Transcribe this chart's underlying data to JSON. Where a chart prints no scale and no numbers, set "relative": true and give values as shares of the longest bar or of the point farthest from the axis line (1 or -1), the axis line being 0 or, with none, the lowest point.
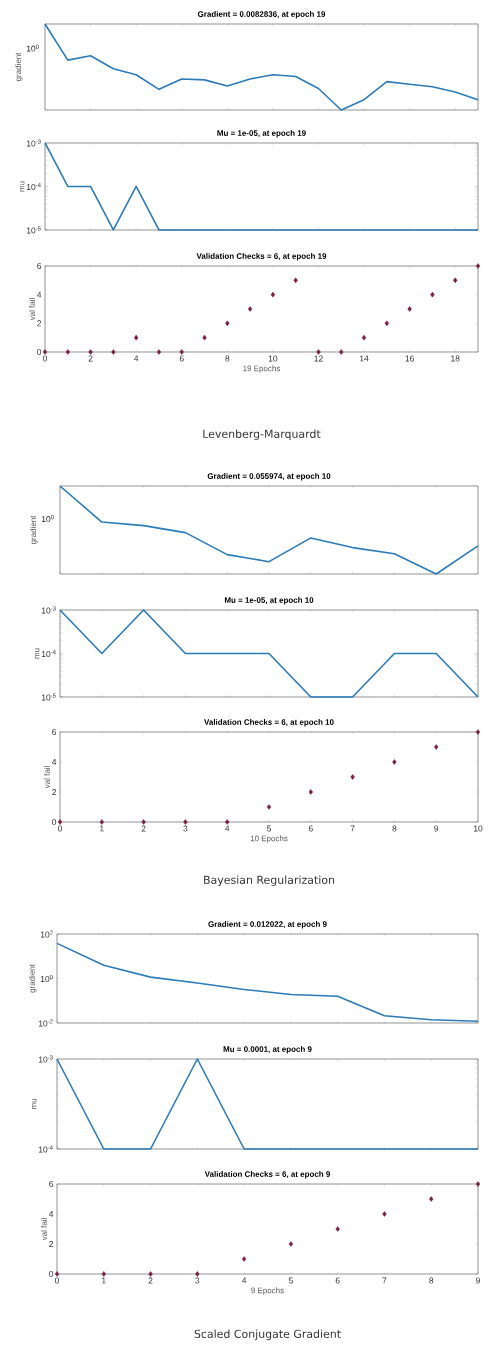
{
  "chart_data": [
    {
      "type": "line",
      "title": "Gradient = 0.0082836, at epoch 19",
      "ylabel": "gradient",
      "relative": true,
      "tick_labels": false,
      "x": [
        0,
        1,
        2,
        3,
        4,
        5,
        6,
        7,
        8,
        9,
        10,
        11,
        12,
        13,
        14,
        15,
        16,
        17,
        18,
        19
      ],
      "xlim": [
        0,
        19
      ],
      "xticks": [
        {
          "value": 0,
          "label": null
        },
        {
          "value": 2,
          "label": null
        },
        {
          "value": 4,
          "label": null
        },
        {
          "value": 6,
          "label": null
        },
        {
          "value": 8,
          "label": null
        },
        {
          "value": 10,
          "label": null
        },
        {
          "value": 12,
          "label": null
        },
        {
          "value": 14,
          "label": null
        },
        {
          "value": 16,
          "label": null
        },
        {
          "value": 18,
          "label": null
        }
      ],
      "series": [
        {
          "color": "#2b7bb9",
          "values": [
            1,
            0.58,
            0.63,
            0.48,
            0.41,
            0.24,
            0.36,
            0.35,
            0.28,
            0.36,
            0.41,
            0.39,
            0.25,
            0,
            0.12,
            0.33,
            0.3,
            0.27,
            0.21,
            0.12
          ]
        }
      ],
      "annotations": [
        "10$^{0}$"
      ]
    },
    {
      "type": "line",
      "title": "Mu = 1e-05, at epoch 19",
      "ylabel": "mu",
      "log": "y",
      "tick_labels": "y",
      "x": [
        0,
        1,
        2,
        3,
        4,
        5,
        6,
        7,
        8,
        9,
        10,
        11,
        12,
        13,
        14,
        15,
        16,
        17,
        18,
        19
      ],
      "xlim": [
        0,
        19
      ],
      "xticks": [
        {
          "value": 0,
          "label": null
        },
        {
          "value": 2,
          "label": null
        },
        {
          "value": 4,
          "label": null
        },
        {
          "value": 6,
          "label": null
        },
        {
          "value": 8,
          "label": null
        },
        {
          "value": 10,
          "label": null
        },
        {
          "value": 12,
          "label": null
        },
        {
          "value": 14,
          "label": null
        },
        {
          "value": 16,
          "label": null
        },
        {
          "value": 18,
          "label": null
        }
      ],
      "ylim": [
        1e-05,
        0.001
      ],
      "yticks": [
        {
          "value": 1e-05,
          "label": "10$^{-5}$"
        },
        {
          "value": 0.0001,
          "label": "10$^{-4}$"
        },
        {
          "value": 0.001,
          "label": "10$^{-3}$"
        }
      ],
      "series": [
        {
          "color": "#2b7bb9",
          "values": [
            0.001,
            0.0001,
            0.0001,
            1e-05,
            0.0001,
            1e-05,
            1e-05,
            1e-05,
            1e-05,
            1e-05,
            1e-05,
            1e-05,
            1e-05,
            1e-05,
            1e-05,
            1e-05,
            1e-05,
            1e-05,
            1e-05,
            1e-05
          ]
        }
      ]
    },
    {
      "type": "scatter",
      "title": "Validation Checks = 6, at epoch 19",
      "xlabel": "19 Epochs",
      "ylabel": "val fail",
      "marker": "diamond",
      "x": [
        0,
        1,
        2,
        3,
        4,
        5,
        6,
        7,
        8,
        9,
        10,
        11,
        12,
        13,
        14,
        15,
        16,
        17,
        18,
        19
      ],
      "xlim": [
        0,
        19
      ],
      "xticks": [
        0,
        2,
        4,
        6,
        8,
        10,
        12,
        14,
        16,
        18
      ],
      "ylim": [
        0,
        6
      ],
      "yticks": [
        0,
        2,
        4,
        6
      ],
      "series": [
        {
          "color": "#7a1f3d",
          "values": [
            0,
            0,
            0,
            0,
            1,
            0,
            0,
            1,
            2,
            3,
            4,
            5,
            0,
            0,
            1,
            2,
            3,
            4,
            5,
            6
          ]
        }
      ],
      "annotations": [
        "Levenberg-Marquardt"
      ]
    },
    {
      "type": "line",
      "title": "Gradient = 0.055974, at epoch 10",
      "ylabel": "gradient",
      "relative": true,
      "tick_labels": false,
      "x": [
        0,
        1,
        2,
        3,
        4,
        5,
        6,
        7,
        8,
        9,
        10
      ],
      "xlim": [
        0,
        10
      ],
      "xticks": [
        {
          "value": 0,
          "label": null
        },
        {
          "value": 1,
          "label": null
        },
        {
          "value": 2,
          "label": null
        },
        {
          "value": 3,
          "label": null
        },
        {
          "value": 4,
          "label": null
        },
        {
          "value": 5,
          "label": null
        },
        {
          "value": 6,
          "label": null
        },
        {
          "value": 7,
          "label": null
        },
        {
          "value": 8,
          "label": null
        },
        {
          "value": 9,
          "label": null
        },
        {
          "value": 10,
          "label": null
        }
      ],
      "series": [
        {
          "color": "#2b7bb9",
          "values": [
            1,
            0.59,
            0.55,
            0.47,
            0.22,
            0.14,
            0.41,
            0.3,
            0.23,
            0,
            0.32
          ]
        }
      ],
      "annotations": [
        "10$^{0}$"
      ]
    },
    {
      "type": "line",
      "title": "Mu = 1e-05, at epoch 10",
      "ylabel": "mu",
      "log": "y",
      "tick_labels": "y",
      "x": [
        0,
        1,
        2,
        3,
        4,
        5,
        6,
        7,
        8,
        9,
        10
      ],
      "xlim": [
        0,
        10
      ],
      "xticks": [
        {
          "value": 0,
          "label": null
        },
        {
          "value": 1,
          "label": null
        },
        {
          "value": 2,
          "label": null
        },
        {
          "value": 3,
          "label": null
        },
        {
          "value": 4,
          "label": null
        },
        {
          "value": 5,
          "label": null
        },
        {
          "value": 6,
          "label": null
        },
        {
          "value": 7,
          "label": null
        },
        {
          "value": 8,
          "label": null
        },
        {
          "value": 9,
          "label": null
        },
        {
          "value": 10,
          "label": null
        }
      ],
      "ylim": [
        1e-05,
        0.001
      ],
      "yticks": [
        {
          "value": 1e-05,
          "label": "10$^{-5}$"
        },
        {
          "value": 0.0001,
          "label": "10$^{-4}$"
        },
        {
          "value": 0.001,
          "label": "10$^{-3}$"
        }
      ],
      "series": [
        {
          "color": "#2b7bb9",
          "values": [
            0.001,
            0.0001,
            0.001,
            0.0001,
            0.0001,
            0.0001,
            1e-05,
            1e-05,
            0.0001,
            0.0001,
            1e-05
          ]
        }
      ]
    },
    {
      "type": "scatter",
      "title": "Validation Checks = 6, at epoch 10",
      "xlabel": "10 Epochs",
      "ylabel": "val fail",
      "marker": "diamond",
      "x": [
        0,
        1,
        2,
        3,
        4,
        5,
        6,
        7,
        8,
        9,
        10
      ],
      "xlim": [
        0,
        10
      ],
      "xticks": [
        0,
        1,
        2,
        3,
        4,
        5,
        6,
        7,
        8,
        9,
        10
      ],
      "ylim": [
        0,
        6
      ],
      "yticks": [
        0,
        2,
        4,
        6
      ],
      "series": [
        {
          "color": "#7a1f3d",
          "values": [
            0,
            0,
            0,
            0,
            0,
            1,
            2,
            3,
            4,
            5,
            6
          ]
        }
      ],
      "annotations": [
        "Bayesian Regularization"
      ]
    },
    {
      "type": "line",
      "title": "Gradient = 0.012022, at epoch 9",
      "ylabel": "gradient",
      "log": "y",
      "tick_labels": "y",
      "x": [
        0,
        1,
        2,
        3,
        4,
        5,
        6,
        7,
        8,
        9
      ],
      "xlim": [
        0,
        9
      ],
      "xticks": [
        {
          "value": 0,
          "label": null
        },
        {
          "value": 1,
          "label": null
        },
        {
          "value": 2,
          "label": null
        },
        {
          "value": 3,
          "label": null
        },
        {
          "value": 4,
          "label": null
        },
        {
          "value": 5,
          "label": null
        },
        {
          "value": 6,
          "label": null
        },
        {
          "value": 7,
          "label": null
        },
        {
          "value": 8,
          "label": null
        },
        {
          "value": 9,
          "label": null
        }
      ],
      "ylim": [
        0.01,
        100
      ],
      "yticks": [
        {
          "value": 0.01,
          "label": "10$^{-2}$"
        },
        {
          "value": 1,
          "label": "10$^{0}$"
        },
        {
          "value": 100,
          "label": "10$^{2}$"
        }
      ],
      "series": [
        {
          "color": "#2b7bb9",
          "values": [
            38,
            3.9,
            1.15,
            0.63,
            0.32,
            0.19,
            0.16,
            0.021,
            0.014,
            0.012
          ]
        }
      ]
    },
    {
      "type": "line",
      "title": "Mu = 0.0001, at epoch 9",
      "ylabel": "mu",
      "log": "y",
      "tick_labels": "y",
      "x": [
        0,
        1,
        2,
        3,
        4,
        5,
        6,
        7,
        8,
        9
      ],
      "xlim": [
        0,
        9
      ],
      "xticks": [
        {
          "value": 0,
          "label": null
        },
        {
          "value": 1,
          "label": null
        },
        {
          "value": 2,
          "label": null
        },
        {
          "value": 3,
          "label": null
        },
        {
          "value": 4,
          "label": null
        },
        {
          "value": 5,
          "label": null
        },
        {
          "value": 6,
          "label": null
        },
        {
          "value": 7,
          "label": null
        },
        {
          "value": 8,
          "label": null
        },
        {
          "value": 9,
          "label": null
        }
      ],
      "ylim": [
        0.0001,
        0.001
      ],
      "yticks": [
        {
          "value": 0.0001,
          "label": "10$^{-4}$"
        },
        {
          "value": 0.001,
          "label": "10$^{-3}$"
        }
      ],
      "series": [
        {
          "color": "#2b7bb9",
          "values": [
            0.001,
            0.0001,
            0.0001,
            0.001,
            0.0001,
            0.0001,
            0.0001,
            0.0001,
            0.0001,
            0.0001
          ]
        }
      ]
    },
    {
      "type": "scatter",
      "title": "Validation Checks = 6, at epoch 9",
      "xlabel": "9 Epochs",
      "ylabel": "val fail",
      "marker": "diamond",
      "x": [
        0,
        1,
        2,
        3,
        4,
        5,
        6,
        7,
        8,
        9
      ],
      "xlim": [
        0,
        9
      ],
      "xticks": [
        0,
        1,
        2,
        3,
        4,
        5,
        6,
        7,
        8,
        9
      ],
      "ylim": [
        0,
        6
      ],
      "yticks": [
        0,
        2,
        4,
        6
      ],
      "series": [
        {
          "color": "#7a1f3d",
          "values": [
            0,
            0,
            0,
            0,
            1,
            2,
            3,
            4,
            5,
            6
          ]
        }
      ],
      "annotations": [
        "Scaled Conjugate Gradient"
      ]
    }
  ]
}
